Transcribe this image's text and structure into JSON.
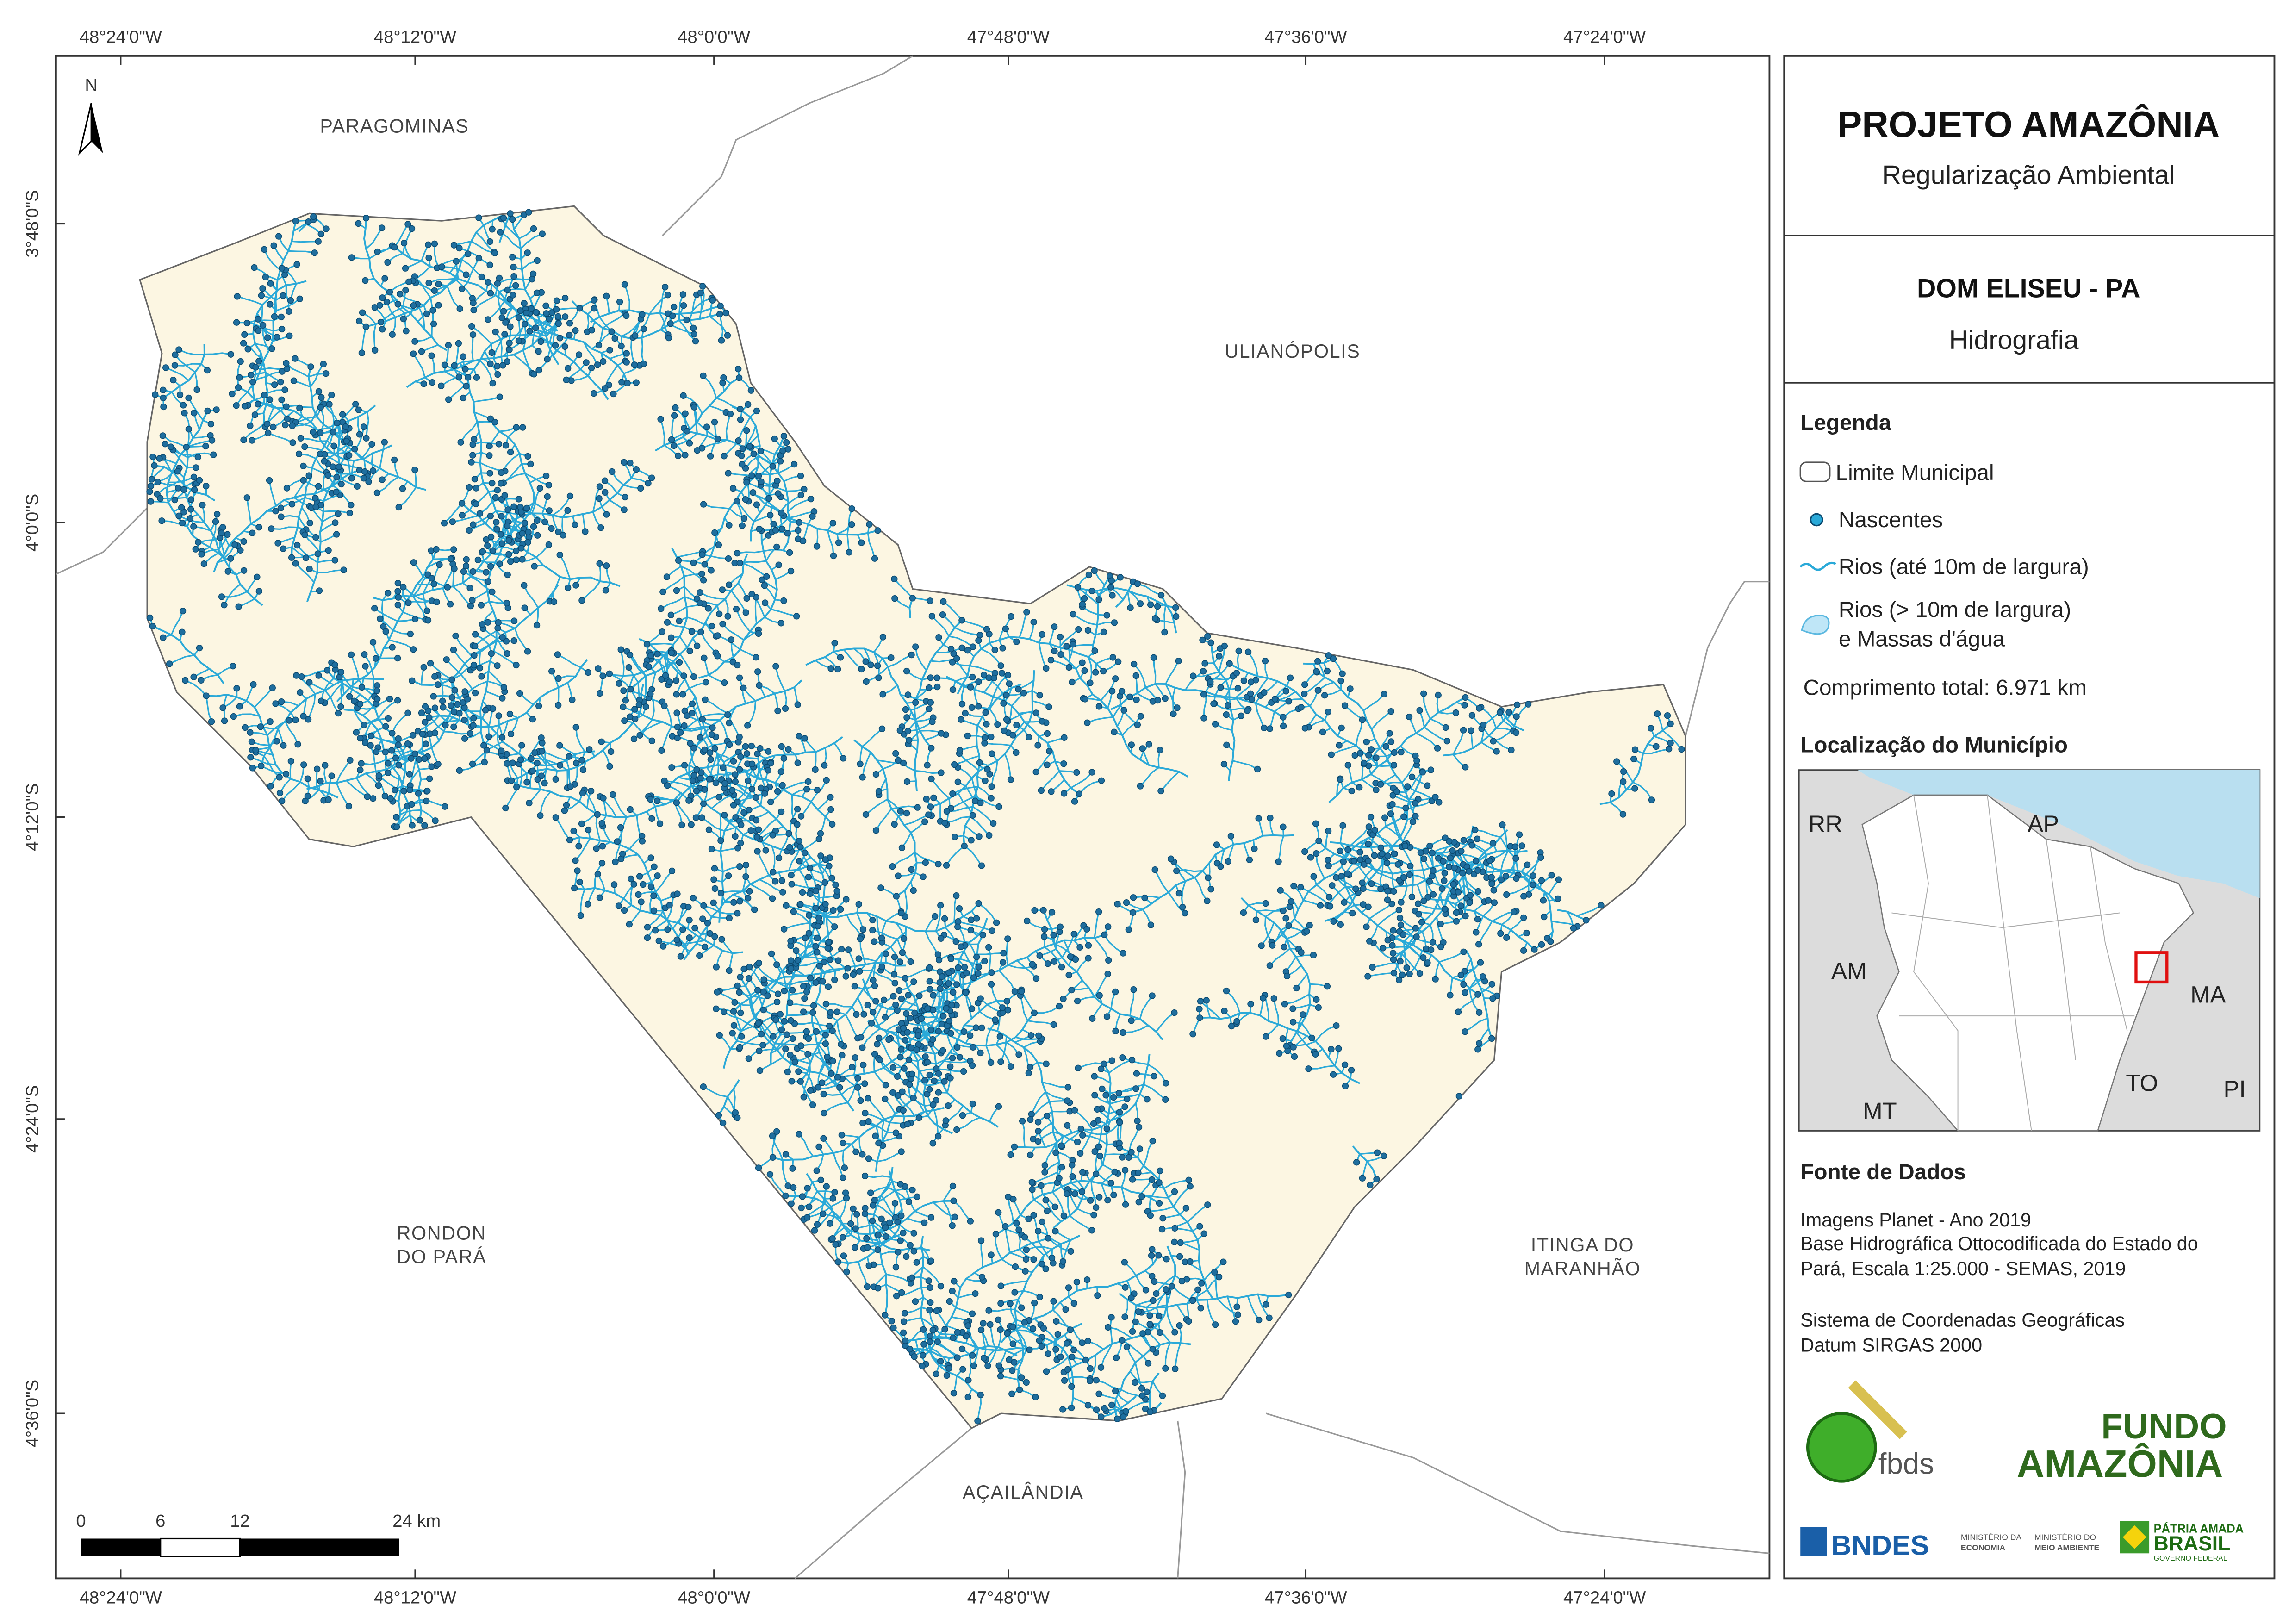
{
  "header": {
    "title": "PROJETO AMAZÔNIA",
    "subtitle": "Regularização Ambiental"
  },
  "map_title": {
    "title": "DOM ELISEU - PA",
    "subtitle": "Hidrografia"
  },
  "legend": {
    "title": "Legenda",
    "items": [
      "Limite Municipal",
      "Nascentes",
      "Rios (até 10m de largura)"
    ],
    "water": [
      "Rios (> 10m de largura)",
      "e Massas d'água"
    ],
    "total": "Comprimento total: 6.971 km"
  },
  "location": {
    "title": "Localização do Município",
    "labels": [
      "RR",
      "AP",
      "AM",
      "MA",
      "MT",
      "TO",
      "PI"
    ]
  },
  "sources": {
    "title": "Fonte de Dados",
    "lines": [
      "Imagens Planet - Ano 2019",
      "Base Hidrográfica Ottocodificada do Estado do",
      "Pará, Escala 1:25.000 - SEMAS, 2019",
      "Sistema de Coordenadas Geográficas",
      "Datum SIRGAS 2000"
    ]
  },
  "map": {
    "north": "N",
    "lon_ticks": [
      "48°24'0\"W",
      "48°12'0\"W",
      "48°0'0\"W",
      "47°48'0\"W",
      "47°36'0\"W",
      "47°24'0\"W"
    ],
    "lat_ticks": [
      "3°48'0\"S",
      "4°0'0\"S",
      "4°12'0\"S",
      "4°24'0\"S",
      "4°36'0\"S"
    ],
    "neighbors": [
      "PARAGOMINAS",
      "ULIANÓPOLIS",
      "RONDON",
      "DO PARÁ",
      "ITINGA DO",
      "MARANHÃO",
      "AÇAILÂNDIA"
    ],
    "scale": [
      "0",
      "6",
      "12",
      "24 km"
    ]
  },
  "logos": {
    "fbds": "fbds",
    "fundo": "FUNDO",
    "amazonia": "AMAZÔNIA",
    "bndes": "BNDES",
    "min1": "MINISTÉRIO DA",
    "min1b": "ECONOMIA",
    "min2": "MINISTÉRIO DO",
    "min2b": "MEIO AMBIENTE",
    "patria": "PÁTRIA AMADA",
    "brasil": "BRASIL",
    "gov": "GOVERNO FEDERAL"
  }
}
